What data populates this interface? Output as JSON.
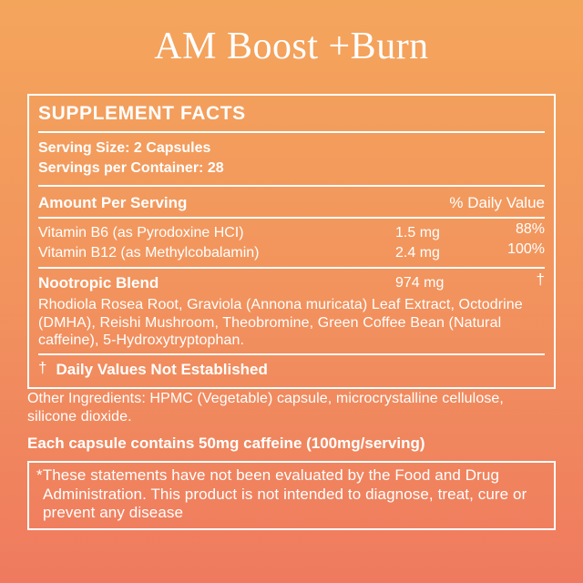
{
  "product": {
    "title": "AM Boost +Burn"
  },
  "facts": {
    "header": "SUPPLEMENT FACTS",
    "serving_size": "Serving Size: 2 Capsules",
    "servings_per_container": "Servings per Container: 28",
    "amount_header": "Amount Per Serving",
    "dv_header": "% Daily Value",
    "rows": [
      {
        "name": "Vitamin B6 (as Pyrodoxine HCI)",
        "amount": "1.5 mg",
        "dv": "88%"
      },
      {
        "name": "Vitamin B12 (as Methylcobalamin)",
        "amount": "2.4 mg",
        "dv": "100%"
      }
    ],
    "blend": {
      "name": "Nootropic Blend",
      "amount": "974 mg",
      "dv": "†",
      "ingredients": "Rhodiola Rosea Root, Graviola (Annona muricata) Leaf Extract, Octodrine (DMHA), Reishi Mushroom, Theobromine, Green Coffee Bean (Natural caffeine), 5-Hydroxytryptophan."
    },
    "footnote_symbol": "†",
    "footnote_text": "Daily Values Not Established"
  },
  "other_ingredients": "Other Ingredients: HPMC (Vegetable) capsule, microcrystalline cellulose, silicone dioxide.",
  "caffeine_note": "Each capsule contains 50mg caffeine (100mg/serving)",
  "disclaimer": "*These statements have not been evaluated by the Food and Drug Administration. This product is not intended to diagnose, treat, cure or prevent any disease",
  "colors": {
    "background_top": "#F4A55C",
    "background_bottom": "#EF7A5F",
    "border_and_text": "#FFFFFF"
  }
}
